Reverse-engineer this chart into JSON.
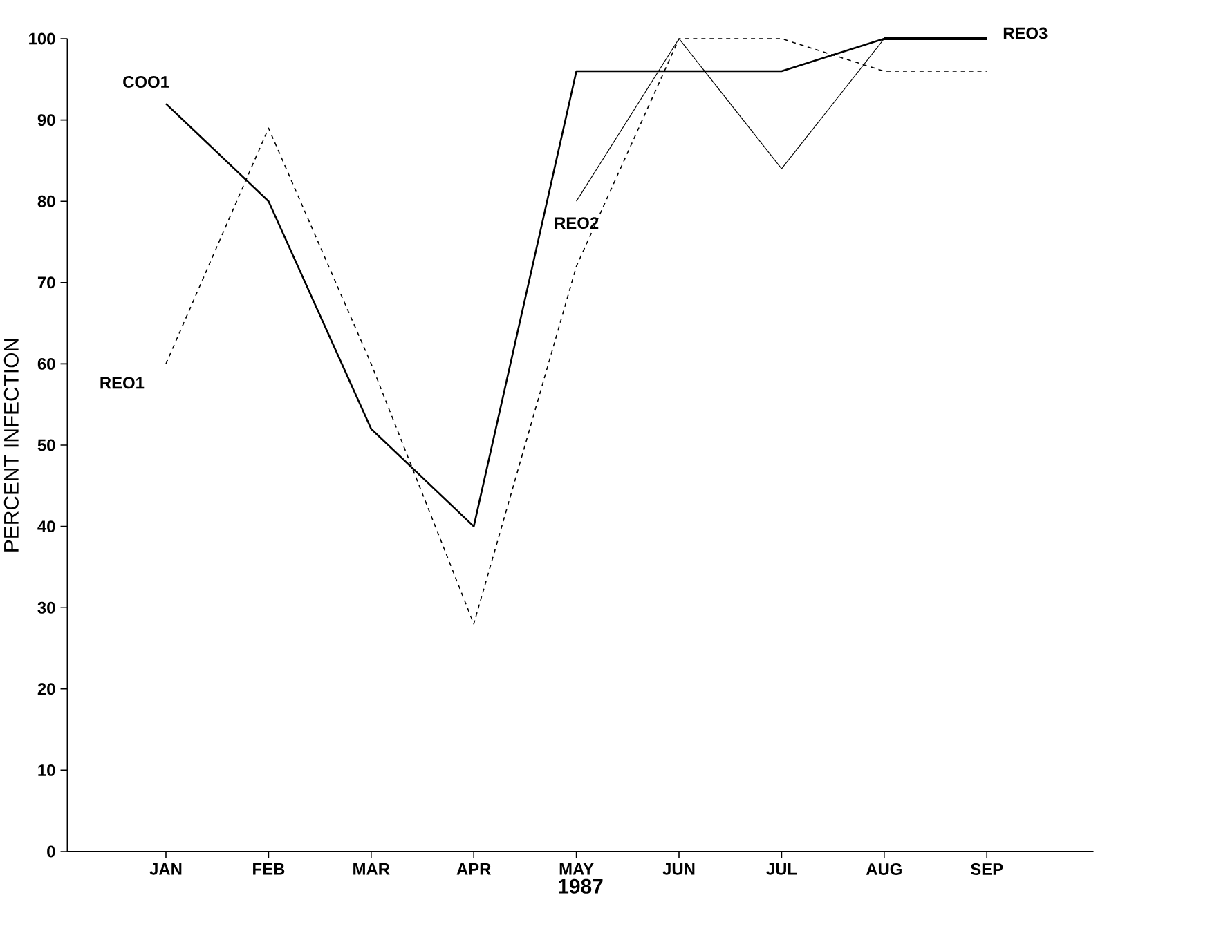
{
  "chart_data": {
    "type": "line",
    "xlabel": "1987",
    "ylabel": "PERCENT INFECTION",
    "categories": [
      "JAN",
      "FEB",
      "MAR",
      "APR",
      "MAY",
      "JUN",
      "JUL",
      "AUG",
      "SEP"
    ],
    "ylim": [
      0,
      100
    ],
    "yticks": [
      0,
      10,
      20,
      30,
      40,
      50,
      60,
      70,
      80,
      90,
      100
    ],
    "series": [
      {
        "name": "COO1",
        "color": "#000000",
        "line_style": "solid",
        "values": [
          92,
          80,
          52,
          40,
          96,
          96,
          96,
          100,
          100
        ]
      },
      {
        "name": "REO1",
        "color": "#000000",
        "line_style": "dashed",
        "values": [
          60,
          89,
          60,
          28,
          72,
          100,
          100,
          96,
          96
        ]
      },
      {
        "name": "REO2",
        "color": "#000000",
        "line_style": "solid",
        "values": [
          null,
          null,
          null,
          null,
          80,
          100,
          84,
          100,
          null
        ]
      },
      {
        "name": "REO3",
        "color": "#000000",
        "line_style": "solid",
        "values": [
          null,
          null,
          null,
          null,
          null,
          null,
          null,
          100,
          100
        ]
      }
    ]
  }
}
